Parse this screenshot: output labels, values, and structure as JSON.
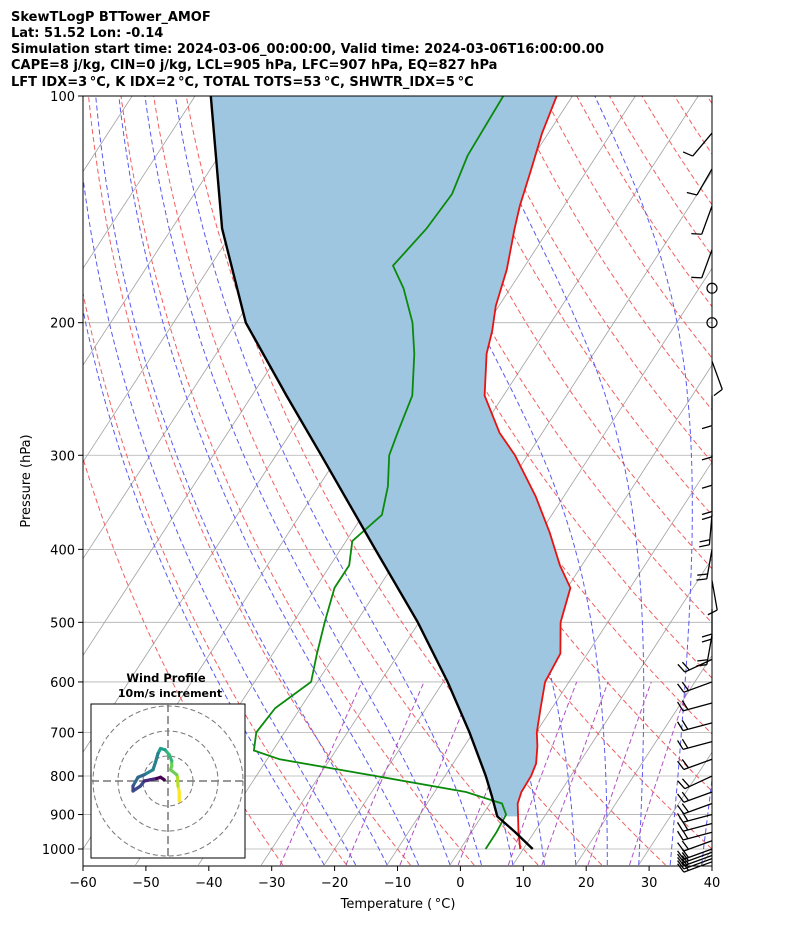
{
  "header": {
    "line1": "SkewTLogP BTTower_AMOF",
    "line2": "Lat: 51.52   Lon: -0.14",
    "line3": "Simulation start time: 2024-03-06_00:00:00, Valid time: 2024-03-06T16:00:00.00",
    "line4": "CAPE=8 j/kg, CIN=0 j/kg, LCL=905 hPa, LFC=907 hPa, EQ=827 hPa",
    "line5": "LFT IDX=3 °C, K IDX=2 °C, TOTAL TOTS=53 °C, SHWTR_IDX=5 °C"
  },
  "colors": {
    "temperature": "#e8120f",
    "dewpoint": "#0a8a0a",
    "parcel": "#000000",
    "cape_fill": "#9fc6e0",
    "dry_adiabat": "#f06060",
    "moist_adiabat": "#5a5af0",
    "mixing_ratio": "#b050c0",
    "isotherm": "#a0a0a0"
  },
  "chart_data": {
    "type": "line",
    "title": "",
    "xlabel": "Temperature ( °C)",
    "ylabel": "Pressure (hPa)",
    "xlim": [
      -60,
      40
    ],
    "ylim": [
      1050,
      100
    ],
    "yscale": "log",
    "grid": true,
    "x_ticks": [
      "−60",
      "−50",
      "−40",
      "−30",
      "−20",
      "−10",
      "0",
      "10",
      "20",
      "30",
      "40"
    ],
    "x_tick_values": [
      -60,
      -50,
      -40,
      -30,
      -20,
      -10,
      0,
      10,
      20,
      30,
      40
    ],
    "y_ticks": [
      "1000",
      "900",
      "800",
      "700",
      "600",
      "500",
      "400",
      "300",
      "200",
      "100"
    ],
    "y_tick_values": [
      1000,
      900,
      800,
      700,
      600,
      500,
      400,
      300,
      200,
      100
    ],
    "series": [
      {
        "key": "temperature",
        "points": [
          [
            1000,
            9.5
          ],
          [
            950,
            7.5
          ],
          [
            900,
            5.6
          ],
          [
            870,
            4.4
          ],
          [
            840,
            3.8
          ],
          [
            800,
            3.7
          ],
          [
            770,
            3.2
          ],
          [
            730,
            1.6
          ],
          [
            700,
            0.1
          ],
          [
            650,
            -1.8
          ],
          [
            600,
            -3.8
          ],
          [
            550,
            -4.3
          ],
          [
            500,
            -7.5
          ],
          [
            450,
            -9.5
          ],
          [
            420,
            -13.5
          ],
          [
            380,
            -18.5
          ],
          [
            340,
            -24.5
          ],
          [
            300,
            -32.0
          ],
          [
            280,
            -36.8
          ],
          [
            250,
            -43.0
          ],
          [
            220,
            -47.0
          ],
          [
            205,
            -48.5
          ],
          [
            190,
            -50.5
          ],
          [
            170,
            -52.5
          ],
          [
            150,
            -55.5
          ],
          [
            140,
            -57.0
          ],
          [
            125,
            -59.0
          ],
          [
            112,
            -61.0
          ],
          [
            100,
            -62.5
          ]
        ]
      },
      {
        "key": "dewpoint",
        "points": [
          [
            1000,
            4.0
          ],
          [
            950,
            4.0
          ],
          [
            900,
            3.7
          ],
          [
            870,
            1.9
          ],
          [
            840,
            -5.0
          ],
          [
            800,
            -21.0
          ],
          [
            760,
            -38.0
          ],
          [
            740,
            -43.0
          ],
          [
            700,
            -44.5
          ],
          [
            650,
            -44.0
          ],
          [
            600,
            -41.0
          ],
          [
            550,
            -43.0
          ],
          [
            500,
            -45.0
          ],
          [
            450,
            -47.0
          ],
          [
            420,
            -47.0
          ],
          [
            390,
            -49.0
          ],
          [
            360,
            -47.0
          ],
          [
            330,
            -49.0
          ],
          [
            300,
            -52.0
          ],
          [
            280,
            -53.0
          ],
          [
            250,
            -54.5
          ],
          [
            220,
            -58.5
          ],
          [
            200,
            -62.0
          ],
          [
            180,
            -67.0
          ],
          [
            168,
            -71.0
          ],
          [
            150,
            -69.5
          ],
          [
            135,
            -69.0
          ],
          [
            120,
            -70.5
          ],
          [
            100,
            -71.0
          ]
        ]
      },
      {
        "key": "parcel",
        "points": [
          [
            1000,
            11.5
          ],
          [
            950,
            7.0
          ],
          [
            905,
            2.5
          ],
          [
            850,
            -0.5
          ],
          [
            800,
            -3.5
          ],
          [
            700,
            -10.6
          ],
          [
            600,
            -19.3
          ],
          [
            500,
            -30.2
          ],
          [
            400,
            -44.5
          ],
          [
            300,
            -62.8
          ],
          [
            250,
            -74.5
          ],
          [
            200,
            -88.5
          ],
          [
            150,
            -102.0
          ],
          [
            100,
            -117.5
          ]
        ]
      }
    ],
    "cape_region": "between parcel and temperature curves",
    "wind_barbs_pressure_hPa": [
      1040,
      1030,
      1020,
      1010,
      1000,
      975,
      950,
      925,
      900,
      870,
      840,
      800,
      760,
      720,
      680,
      640,
      600,
      560,
      520,
      480,
      440,
      400,
      360,
      330,
      300,
      275,
      250,
      225,
      200,
      180,
      160,
      140,
      125,
      112
    ],
    "wind_barbs": [
      {
        "p": 1040,
        "dir": 250,
        "spd": 15
      },
      {
        "p": 1030,
        "dir": 250,
        "spd": 15
      },
      {
        "p": 1020,
        "dir": 250,
        "spd": 15
      },
      {
        "p": 1010,
        "dir": 250,
        "spd": 15
      },
      {
        "p": 1000,
        "dir": 250,
        "spd": 15
      },
      {
        "p": 975,
        "dir": 250,
        "spd": 15
      },
      {
        "p": 950,
        "dir": 255,
        "spd": 15
      },
      {
        "p": 925,
        "dir": 255,
        "spd": 15
      },
      {
        "p": 900,
        "dir": 255,
        "spd": 15
      },
      {
        "p": 870,
        "dir": 250,
        "spd": 15
      },
      {
        "p": 840,
        "dir": 250,
        "spd": 15
      },
      {
        "p": 800,
        "dir": 245,
        "spd": 15
      },
      {
        "p": 760,
        "dir": 250,
        "spd": 15
      },
      {
        "p": 720,
        "dir": 255,
        "spd": 20
      },
      {
        "p": 680,
        "dir": 255,
        "spd": 20
      },
      {
        "p": 640,
        "dir": 255,
        "spd": 20
      },
      {
        "p": 600,
        "dir": 250,
        "spd": 20
      },
      {
        "p": 560,
        "dir": 245,
        "spd": 20
      },
      {
        "p": 520,
        "dir": 190,
        "spd": 20
      },
      {
        "p": 480,
        "dir": 180,
        "spd": 15
      },
      {
        "p": 440,
        "dir": 170,
        "spd": 10
      },
      {
        "p": 400,
        "dir": 190,
        "spd": 15
      },
      {
        "p": 360,
        "dir": 185,
        "spd": 15
      },
      {
        "p": 330,
        "dir": 180,
        "spd": 15
      },
      {
        "p": 300,
        "dir": 180,
        "spd": 10
      },
      {
        "p": 275,
        "dir": 180,
        "spd": 10
      },
      {
        "p": 250,
        "dir": 180,
        "spd": 10
      },
      {
        "p": 225,
        "dir": 160,
        "spd": 10
      },
      {
        "p": 200,
        "dir": 0,
        "spd": 0
      },
      {
        "p": 180,
        "dir": 0,
        "spd": 0
      },
      {
        "p": 160,
        "dir": 200,
        "spd": 10
      },
      {
        "p": 140,
        "dir": 200,
        "spd": 10
      },
      {
        "p": 125,
        "dir": 210,
        "spd": 10
      },
      {
        "p": 112,
        "dir": 220,
        "spd": 10
      }
    ]
  },
  "inset": {
    "title_line1": "Wind Profile",
    "title_line2": "10m/s increment",
    "hodograph_uv": [
      [
        4.5,
        8.0
      ],
      [
        4.5,
        6.5
      ],
      [
        4.5,
        4.5
      ],
      [
        4.0,
        2.0
      ],
      [
        3.8,
        -1.5
      ],
      [
        3.5,
        -2.5
      ],
      [
        1.0,
        -4.5
      ],
      [
        1.5,
        -6.0
      ],
      [
        1.5,
        -8.0
      ],
      [
        0.5,
        -10.5
      ],
      [
        -1.2,
        -12.5
      ],
      [
        -3.0,
        -13.0
      ],
      [
        -4.0,
        -11.0
      ],
      [
        -5.0,
        -7.5
      ],
      [
        -6.0,
        -4.5
      ],
      [
        -9.5,
        -2.5
      ],
      [
        -12.0,
        -1.5
      ],
      [
        -14.0,
        2.0
      ],
      [
        -14.0,
        4.0
      ],
      [
        -11.0,
        2.0
      ],
      [
        -9.5,
        0.0
      ],
      [
        -7.0,
        -0.5
      ],
      [
        -4.5,
        -1.0
      ],
      [
        -3.0,
        -1.5
      ],
      [
        -1.5,
        -0.5
      ]
    ]
  }
}
